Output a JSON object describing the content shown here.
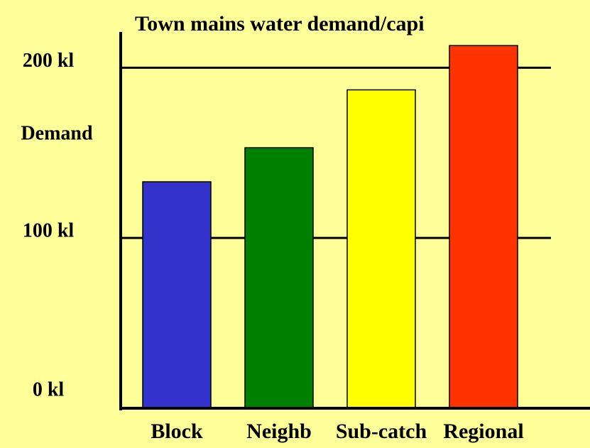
{
  "chart_data": {
    "type": "bar",
    "title": "Town mains water demand/capi",
    "y_label": "Demand",
    "categories": [
      "Block",
      "Neighb",
      "Sub-catch",
      "Regional"
    ],
    "values": [
      133,
      153,
      187,
      213
    ],
    "colors": [
      "#3333cc",
      "#008000",
      "#ffff00",
      "#ff3300"
    ],
    "ylim": [
      0,
      221
    ],
    "yticks": [
      {
        "value": 0,
        "label": "0 kl"
      },
      {
        "value": 100,
        "label": "100 kl"
      },
      {
        "value": 200,
        "label": "200 kl"
      }
    ],
    "grid": true
  }
}
